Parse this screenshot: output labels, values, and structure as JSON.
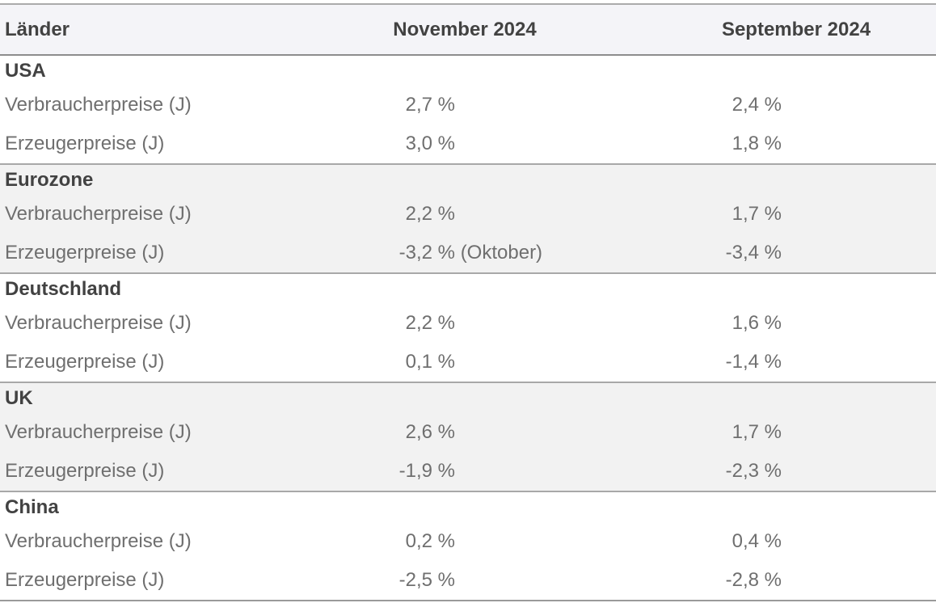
{
  "colors": {
    "header_bg": "#f4f4f8",
    "alt_bg": "#f2f2f2",
    "border_top": "#ababab",
    "border_header": "#8d8d8d",
    "border_section": "#a8a8a8",
    "border_bottom": "#9a9a9a",
    "text_dark": "#424242",
    "text_gray": "#6f6f6f"
  },
  "chart_data": {
    "type": "table",
    "columns": [
      "Länder",
      "November 2024",
      "September 2024"
    ],
    "sections": [
      {
        "country": "USA",
        "rows": [
          {
            "label": "Verbraucherpreise (J)",
            "november": "2,7 %",
            "september": "2,4 %"
          },
          {
            "label": "Erzeugerpreise (J)",
            "november": "3,0 %",
            "september": "1,8 %"
          }
        ]
      },
      {
        "country": "Eurozone",
        "rows": [
          {
            "label": "Verbraucherpreise (J)",
            "november": "2,2 %",
            "september": "1,7 %"
          },
          {
            "label": "Erzeugerpreise (J)",
            "november": "-3,2 % (Oktober)",
            "september": "-3,4 %"
          }
        ]
      },
      {
        "country": "Deutschland",
        "rows": [
          {
            "label": "Verbraucherpreise (J)",
            "november": "2,2 %",
            "september": "1,6 %"
          },
          {
            "label": "Erzeugerpreise (J)",
            "november": "0,1 %",
            "september": "-1,4 %"
          }
        ]
      },
      {
        "country": "UK",
        "rows": [
          {
            "label": "Verbraucherpreise (J)",
            "november": "2,6 %",
            "september": "1,7 %"
          },
          {
            "label": "Erzeugerpreise (J)",
            "november": "-1,9 %",
            "september": "-2,3 %"
          }
        ]
      },
      {
        "country": "China",
        "rows": [
          {
            "label": "Verbraucherpreise (J)",
            "november": "0,2 %",
            "september": "0,4 %"
          },
          {
            "label": "Erzeugerpreise (J)",
            "november": "-2,5 %",
            "september": "-2,8 %"
          }
        ]
      }
    ]
  }
}
